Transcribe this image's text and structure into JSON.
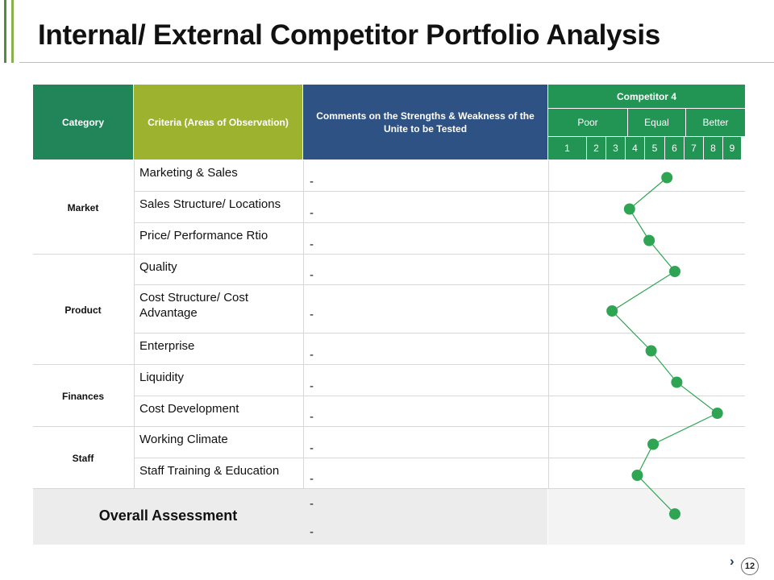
{
  "slide": {
    "title": "Internal/ External Competitor Portfolio Analysis",
    "page_number": "12",
    "accent_colors": [
      "#4f8f3c",
      "#88b04b"
    ]
  },
  "table": {
    "headers": {
      "category": "Category",
      "criteria": "Criteria (Areas of Observation)",
      "comments": "Comments on the Strengths & Weakness of the Unite to be Tested",
      "competitor": "Competitor 4",
      "scale_groups": [
        "Poor",
        "Equal",
        "Better"
      ],
      "scale_numbers": [
        "1",
        "2",
        "3",
        "4",
        "5",
        "6",
        "7",
        "8",
        "9"
      ]
    },
    "header_colors": {
      "category": "#22855a",
      "criteria": "#9db32f",
      "comments": "#2e5283",
      "competitor": "#2fa553"
    },
    "categories": [
      {
        "label": "Market",
        "rows": [
          "Marketing & Sales",
          "Sales Structure/ Locations",
          "Price/ Performance Rtio"
        ]
      },
      {
        "label": "Product",
        "rows": [
          "Quality",
          "Cost Structure/ Cost Advantage",
          "Enterprise"
        ]
      },
      {
        "label": "Finances",
        "rows": [
          "Liquidity",
          "Cost Development"
        ]
      },
      {
        "label": "Staff",
        "rows": [
          "Working Climate",
          "Staff Training & Education"
        ]
      }
    ],
    "comment_dash": "-",
    "overall": {
      "label": "Overall Assessment",
      "comments": [
        "-",
        "-"
      ]
    }
  },
  "chart_data": {
    "type": "line",
    "title": "Competitor 4",
    "x_scale": {
      "min": 1,
      "max": 9,
      "groups": [
        "Poor",
        "Equal",
        "Better"
      ]
    },
    "categories": [
      "Marketing & Sales",
      "Sales Structure/ Locations",
      "Price/ Performance Rtio",
      "Quality",
      "Cost Structure/ Cost Advantage",
      "Enterprise",
      "Liquidity",
      "Cost Development",
      "Working Climate",
      "Staff Training & Education",
      "Overall Assessment"
    ],
    "values": [
      5.6,
      3.7,
      4.7,
      6.0,
      2.8,
      4.8,
      6.1,
      8.2,
      4.9,
      4.1,
      6.0
    ],
    "color": "#2fa553"
  }
}
